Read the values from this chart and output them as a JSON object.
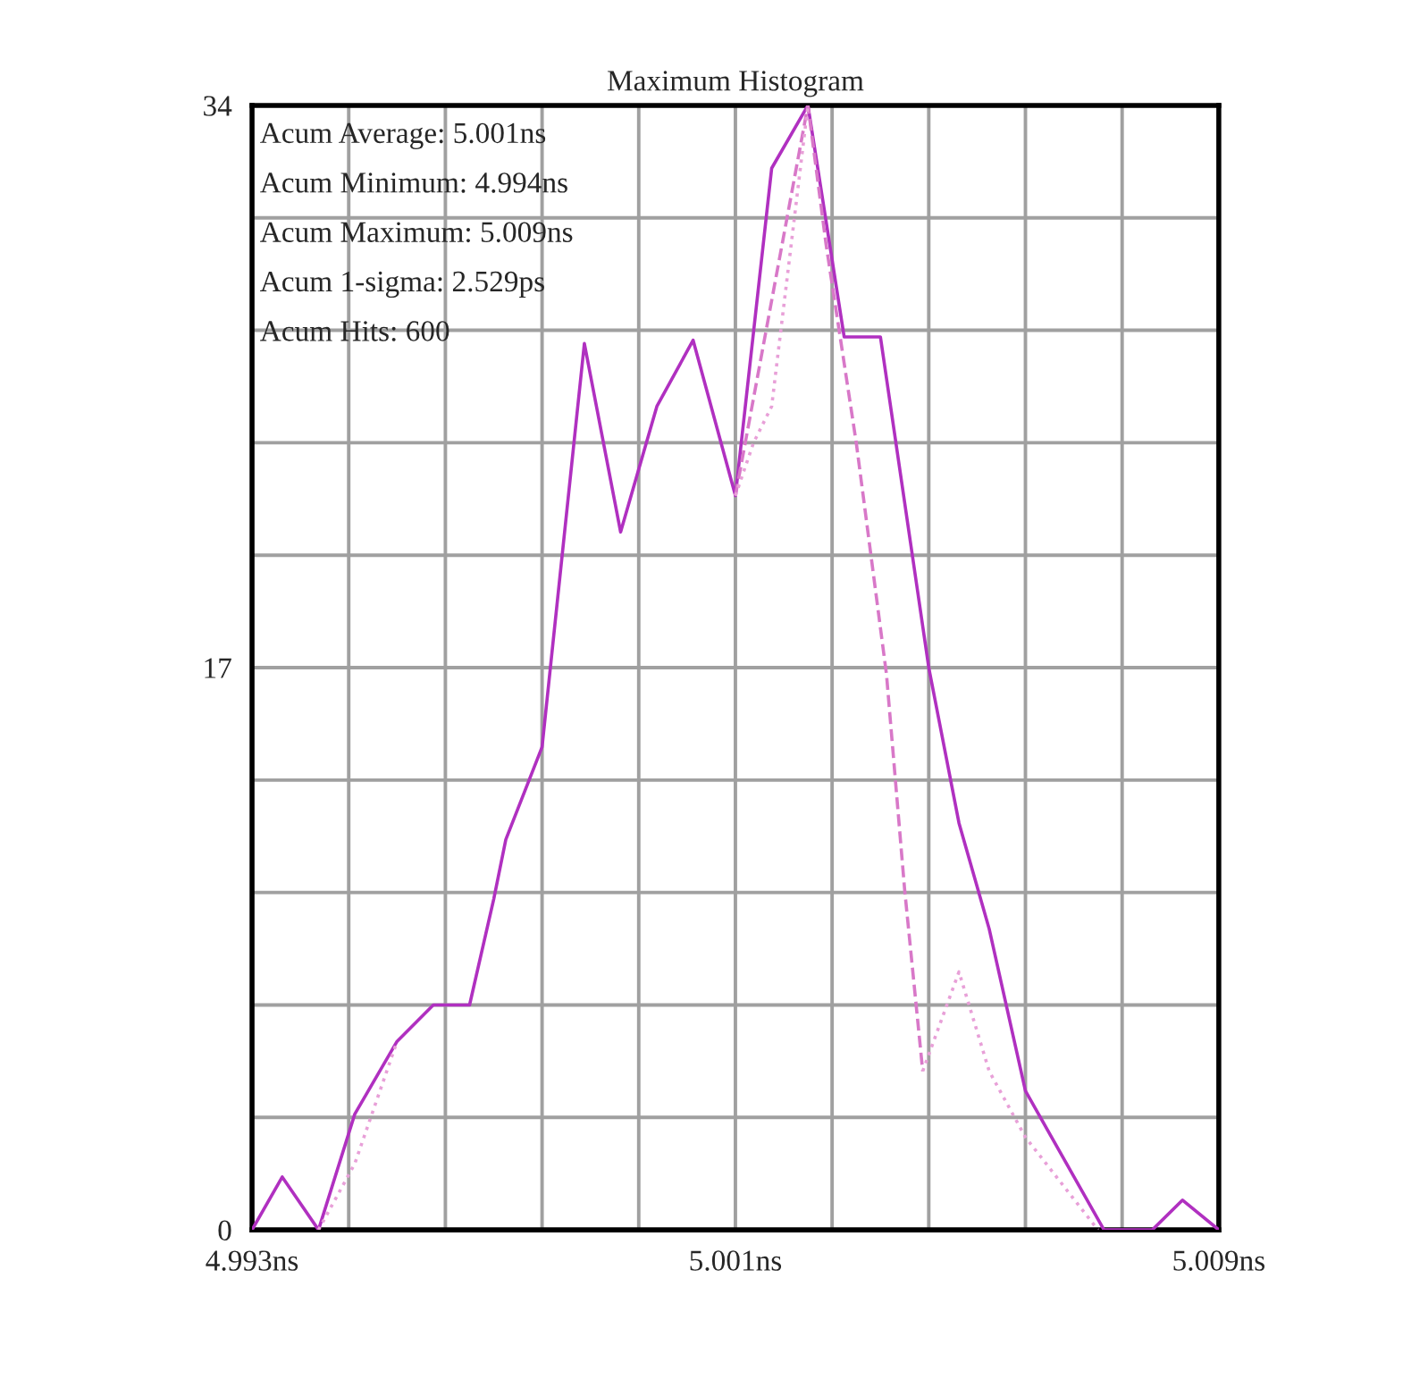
{
  "chart_data": {
    "type": "line",
    "title": "Maximum Histogram",
    "annotations": [
      "Acum Average: 5.001ns",
      "Acum Minimum: 4.994ns",
      "Acum Maximum: 5.009ns",
      "Acum 1-sigma: 2.529ps",
      "Acum Hits: 600"
    ],
    "series": [
      {
        "color": "#b030c0",
        "line_style": "solid",
        "x": [
          4.993,
          4.9935,
          4.9941,
          4.9947,
          4.9954,
          4.996,
          4.9966,
          4.997,
          4.9972,
          4.9978,
          4.9985,
          4.9991,
          4.9997,
          5.0003,
          5.001,
          5.0016,
          5.0022,
          5.0028,
          5.0034,
          5.0042,
          5.0047,
          5.0052,
          5.0058,
          5.0071,
          5.0079,
          5.0084,
          5.009
        ],
        "values": [
          0,
          1.6,
          0,
          3.5,
          5.7,
          6.8,
          6.8,
          10,
          11.8,
          14.6,
          26.8,
          21.1,
          24.9,
          26.9,
          22.2,
          32.1,
          34,
          27,
          27,
          17,
          12.3,
          9.1,
          4.2,
          0,
          0,
          0.9,
          0
        ]
      },
      {
        "color": "#d878c8",
        "line_style": "dashed",
        "x": [
          5.001,
          5.0022,
          5.0025,
          5.003,
          5.0035,
          5.0038,
          5.0041
        ],
        "values": [
          22.2,
          34,
          29.8,
          23.8,
          16.8,
          10.3,
          4.8
        ]
      },
      {
        "color": "#e8a0d8",
        "line_style": "dotted",
        "x": [
          4.9941,
          4.9947,
          4.9954,
          4.999,
          5.001,
          5.0013,
          5.0016,
          5.0022,
          5.003,
          5.0041,
          5.0047,
          5.0052,
          5.0058,
          5.007
        ],
        "values": [
          0,
          2,
          5.7,
          null,
          22.2,
          23.8,
          24.9,
          34,
          null,
          4.8,
          7.8,
          4.8,
          2.8,
          0
        ]
      }
    ],
    "xlim": [
      4.993,
      5.009
    ],
    "xticks": [
      {
        "value": 4.993,
        "label": "4.993ns"
      },
      {
        "value": 4.9946,
        "label": null
      },
      {
        "value": 4.9962,
        "label": null
      },
      {
        "value": 4.9978,
        "label": null
      },
      {
        "value": 4.9994,
        "label": null
      },
      {
        "value": 5.001,
        "label": "5.001ns"
      },
      {
        "value": 5.0026,
        "label": null
      },
      {
        "value": 5.0042,
        "label": null
      },
      {
        "value": 5.0058,
        "label": null
      },
      {
        "value": 5.0074,
        "label": null
      },
      {
        "value": 5.009,
        "label": "5.009ns"
      }
    ],
    "ylim": [
      0,
      34
    ],
    "yticks": [
      0,
      {
        "value": 3.4,
        "label": null
      },
      {
        "value": 6.8,
        "label": null
      },
      {
        "value": 10.2,
        "label": null
      },
      {
        "value": 13.6,
        "label": null
      },
      17,
      {
        "value": 20.4,
        "label": null
      },
      {
        "value": 23.8,
        "label": null
      },
      {
        "value": 27.2,
        "label": null
      },
      {
        "value": 30.6,
        "label": null
      },
      34
    ],
    "grid": true,
    "legend": false
  }
}
